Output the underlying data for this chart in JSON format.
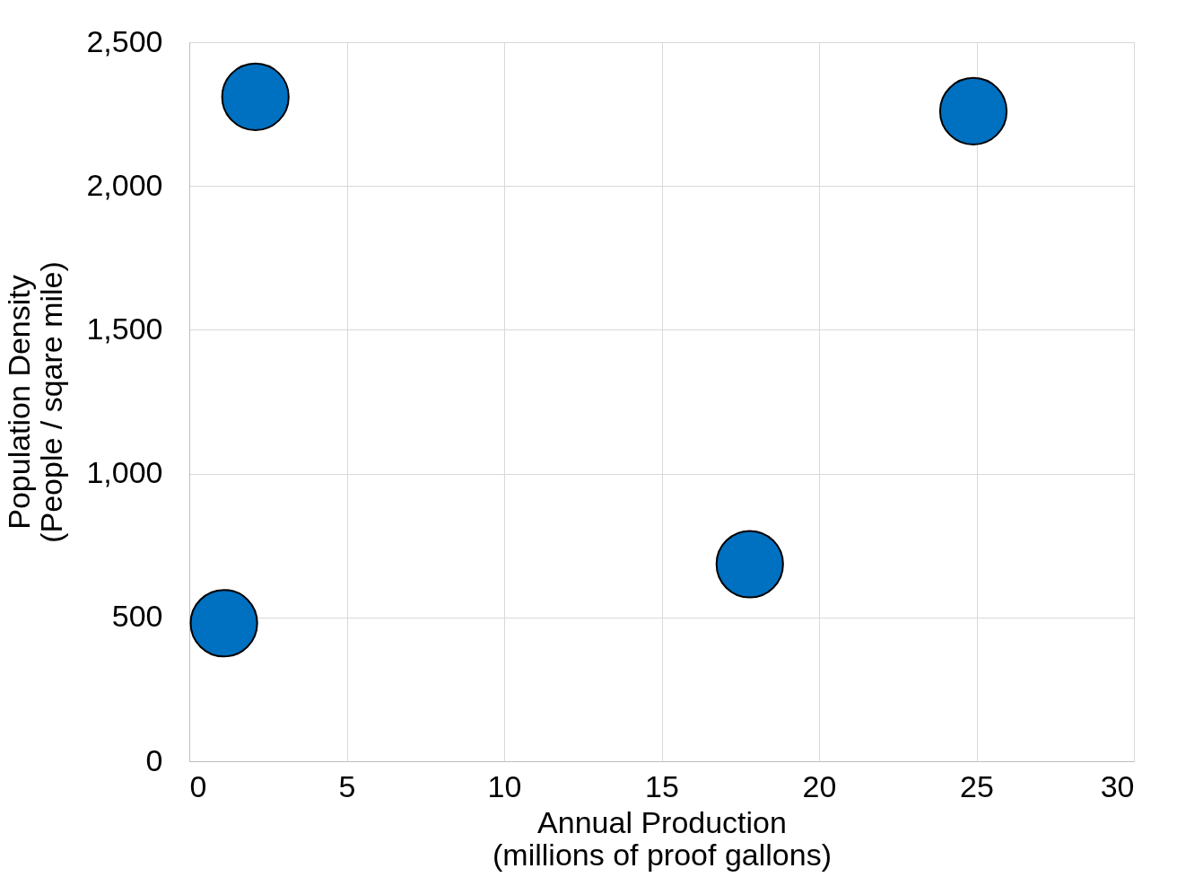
{
  "chart_data": {
    "type": "scatter",
    "x": [
      2.1,
      24.9,
      17.8,
      1.1
    ],
    "values": [
      2310,
      2260,
      685,
      480
    ],
    "color": "#0070c0",
    "marker": "circle",
    "grid": true,
    "xlabel": "Annual Production\n(millions of proof gallons)",
    "ylabel": "Population Density\n(People / sqare mile)",
    "xlim": [
      0,
      30
    ],
    "xticks": [
      0,
      5,
      10,
      15,
      20,
      25,
      30
    ],
    "ylim": [
      0,
      2500
    ],
    "yticks": [
      0,
      500,
      {
        "value": 1000,
        "label": "1,000"
      },
      {
        "value": 1500,
        "label": "1,500"
      },
      {
        "value": 2000,
        "label": "2,000"
      },
      {
        "value": 2500,
        "label": "2,500"
      }
    ]
  }
}
